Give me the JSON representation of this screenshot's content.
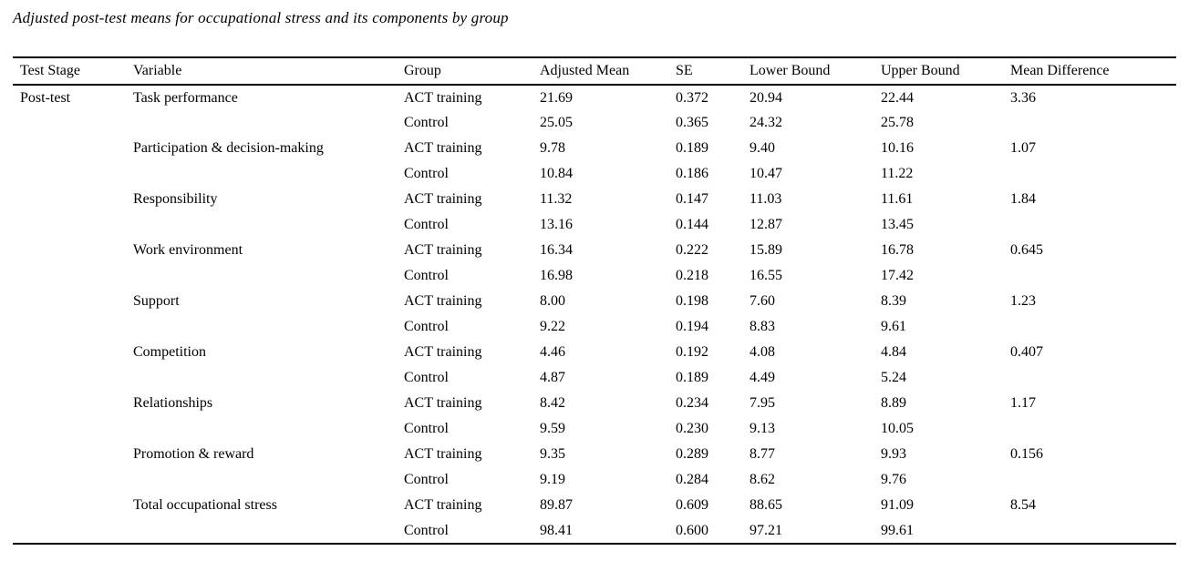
{
  "caption": "Adjusted post-test means for occupational stress and its components by group",
  "table": {
    "headers": [
      "Test Stage",
      "Variable",
      "Group",
      "Adjusted Mean",
      "SE",
      "Lower Bound",
      "Upper Bound",
      "Mean Difference"
    ],
    "rows": [
      [
        "Post-test",
        "Task performance",
        "ACT training",
        "21.69",
        "0.372",
        "20.94",
        "22.44",
        "3.36"
      ],
      [
        "",
        "",
        "Control",
        "25.05",
        "0.365",
        "24.32",
        "25.78",
        ""
      ],
      [
        "",
        "Participation & decision-making",
        "ACT training",
        "9.78",
        "0.189",
        "9.40",
        "10.16",
        "1.07"
      ],
      [
        "",
        "",
        "Control",
        "10.84",
        "0.186",
        "10.47",
        "11.22",
        ""
      ],
      [
        "",
        "Responsibility",
        "ACT training",
        "11.32",
        "0.147",
        "11.03",
        "11.61",
        "1.84"
      ],
      [
        "",
        "",
        "Control",
        "13.16",
        "0.144",
        "12.87",
        "13.45",
        ""
      ],
      [
        "",
        "Work environment",
        "ACT training",
        "16.34",
        "0.222",
        "15.89",
        "16.78",
        "0.645"
      ],
      [
        "",
        "",
        "Control",
        "16.98",
        "0.218",
        "16.55",
        "17.42",
        ""
      ],
      [
        "",
        "Support",
        "ACT training",
        "8.00",
        "0.198",
        "7.60",
        "8.39",
        "1.23"
      ],
      [
        "",
        "",
        "Control",
        "9.22",
        "0.194",
        "8.83",
        "9.61",
        ""
      ],
      [
        "",
        "Competition",
        "ACT training",
        "4.46",
        "0.192",
        "4.08",
        "4.84",
        "0.407"
      ],
      [
        "",
        "",
        "Control",
        "4.87",
        "0.189",
        "4.49",
        "5.24",
        ""
      ],
      [
        "",
        "Relationships",
        "ACT training",
        "8.42",
        "0.234",
        "7.95",
        "8.89",
        "1.17"
      ],
      [
        "",
        "",
        "Control",
        "9.59",
        "0.230",
        "9.13",
        "10.05",
        ""
      ],
      [
        "",
        "Promotion & reward",
        "ACT training",
        "9.35",
        "0.289",
        "8.77",
        "9.93",
        "0.156"
      ],
      [
        "",
        "",
        "Control",
        "9.19",
        "0.284",
        "8.62",
        "9.76",
        ""
      ],
      [
        "",
        "Total occupational stress",
        "ACT training",
        "89.87",
        "0.609",
        "88.65",
        "91.09",
        "8.54"
      ],
      [
        "",
        "",
        "Control",
        "98.41",
        "0.600",
        "97.21",
        "99.61",
        ""
      ]
    ]
  },
  "chart_data": {
    "type": "table",
    "title": "Adjusted post-test means for occupational stress and its components by group",
    "columns": [
      "Test Stage",
      "Variable",
      "Group",
      "Adjusted Mean",
      "SE",
      "Lower Bound",
      "Upper Bound",
      "Mean Difference"
    ],
    "variables": [
      "Task performance",
      "Participation & decision-making",
      "Responsibility",
      "Work environment",
      "Support",
      "Competition",
      "Relationships",
      "Promotion & reward",
      "Total occupational stress"
    ],
    "series": [
      {
        "name": "ACT training adjusted mean",
        "values": [
          21.69,
          9.78,
          11.32,
          16.34,
          8.0,
          4.46,
          8.42,
          9.35,
          89.87
        ]
      },
      {
        "name": "Control adjusted mean",
        "values": [
          25.05,
          10.84,
          13.16,
          16.98,
          9.22,
          4.87,
          9.59,
          9.19,
          98.41
        ]
      },
      {
        "name": "Mean difference",
        "values": [
          3.36,
          1.07,
          1.84,
          0.645,
          1.23,
          0.407,
          1.17,
          0.156,
          8.54
        ]
      }
    ]
  }
}
